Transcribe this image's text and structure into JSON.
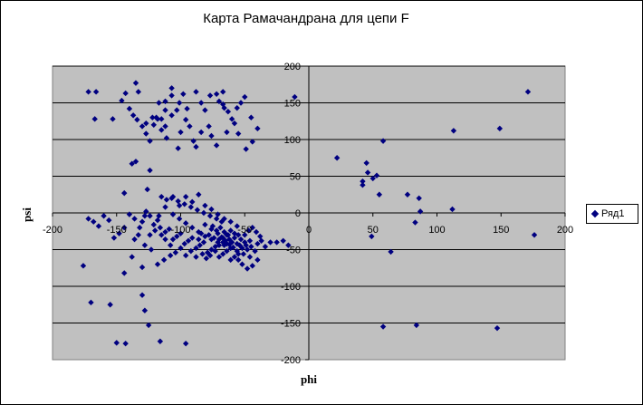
{
  "chart_data": {
    "type": "scatter",
    "title": "Карта Рамачандрана для цепи F",
    "xlabel": "phi",
    "ylabel": "psi",
    "xlim": [
      -200,
      200
    ],
    "ylim": [
      -200,
      200
    ],
    "x_ticks": [
      -200,
      -150,
      -100,
      -50,
      0,
      50,
      100,
      150,
      200
    ],
    "y_ticks": [
      200,
      150,
      100,
      50,
      0,
      -50,
      -100,
      -150,
      -200
    ],
    "grid": "horizontal",
    "legend": "right",
    "colors": {
      "marker": "#000080",
      "plot_bg": "#c0c0c0",
      "gridline": "#000000"
    },
    "series": [
      {
        "name": "Ряд1",
        "points": [
          [
            -172,
            165
          ],
          [
            -166,
            165
          ],
          [
            -167,
            128
          ],
          [
            -153,
            128
          ],
          [
            -146,
            153
          ],
          [
            -143,
            163
          ],
          [
            -135,
            177
          ],
          [
            -133,
            165
          ],
          [
            -140,
            142
          ],
          [
            -137,
            133
          ],
          [
            -134,
            127
          ],
          [
            -130,
            118
          ],
          [
            -127,
            108
          ],
          [
            -124,
            98
          ],
          [
            -119,
            130
          ],
          [
            -115,
            128
          ],
          [
            -112,
            140
          ],
          [
            -112,
            152
          ],
          [
            -107,
            170
          ],
          [
            -107,
            160
          ],
          [
            -112,
            118
          ],
          [
            -111,
            102
          ],
          [
            -103,
            140
          ],
          [
            -98,
            162
          ],
          [
            -96,
            127
          ],
          [
            -93,
            118
          ],
          [
            -90,
            98
          ],
          [
            -88,
            90
          ],
          [
            -84,
            150
          ],
          [
            -81,
            140
          ],
          [
            -78,
            118
          ],
          [
            -76,
            105
          ],
          [
            -72,
            162
          ],
          [
            -70,
            152
          ],
          [
            -66,
            143
          ],
          [
            -63,
            138
          ],
          [
            -60,
            128
          ],
          [
            -58,
            122
          ],
          [
            -67,
            165
          ],
          [
            -77,
            160
          ],
          [
            -88,
            165
          ],
          [
            -95,
            142
          ],
          [
            -101,
            150
          ],
          [
            -117,
            150
          ],
          [
            -121,
            120
          ],
          [
            -107,
            133
          ],
          [
            -100,
            110
          ],
          [
            -102,
            88
          ],
          [
            -84,
            110
          ],
          [
            -72,
            92
          ],
          [
            -64,
            110
          ],
          [
            -67,
            148
          ],
          [
            -50,
            158
          ],
          [
            -53,
            150
          ],
          [
            -55,
            108
          ],
          [
            -56,
            143
          ],
          [
            -45,
            130
          ],
          [
            -44,
            97
          ],
          [
            -40,
            115
          ],
          [
            -49,
            87
          ],
          [
            -122,
            130
          ],
          [
            -127,
            122
          ],
          [
            -118,
            128
          ],
          [
            -115,
            113
          ],
          [
            -135,
            70
          ],
          [
            -138,
            67
          ],
          [
            -124,
            58
          ],
          [
            -144,
            27
          ],
          [
            -126,
            32
          ],
          [
            -115,
            22
          ],
          [
            -111,
            18
          ],
          [
            -106,
            22
          ],
          [
            -101,
            10
          ],
          [
            -96,
            22
          ],
          [
            -91,
            15
          ],
          [
            -86,
            25
          ],
          [
            -81,
            10
          ],
          [
            -76,
            5
          ],
          [
            -71,
            -2
          ],
          [
            -66,
            -8
          ],
          [
            -61,
            -12
          ],
          [
            -56,
            -18
          ],
          [
            -106,
            -2
          ],
          [
            -101,
            -8
          ],
          [
            -96,
            -14
          ],
          [
            -91,
            -20
          ],
          [
            -86,
            -26
          ],
          [
            -81,
            -32
          ],
          [
            -76,
            -36
          ],
          [
            -71,
            -40
          ],
          [
            -66,
            -44
          ],
          [
            -61,
            -48
          ],
          [
            -56,
            -52
          ],
          [
            -51,
            -56
          ],
          [
            -46,
            -60
          ],
          [
            -81,
            -16
          ],
          [
            -76,
            -22
          ],
          [
            -71,
            -28
          ],
          [
            -68,
            -33
          ],
          [
            -65,
            -38
          ],
          [
            -62,
            -43
          ],
          [
            -59,
            -47
          ],
          [
            -56,
            -42
          ],
          [
            -53,
            -36
          ],
          [
            -50,
            -30
          ],
          [
            -47,
            -24
          ],
          [
            -44,
            -20
          ],
          [
            -41,
            -26
          ],
          [
            -38,
            -32
          ],
          [
            -46,
            -38
          ],
          [
            -49,
            -44
          ],
          [
            -52,
            -48
          ],
          [
            -55,
            -56
          ],
          [
            -58,
            -60
          ],
          [
            -61,
            -64
          ],
          [
            -64,
            -52
          ],
          [
            -67,
            -56
          ],
          [
            -70,
            -60
          ],
          [
            -73,
            -46
          ],
          [
            -76,
            -50
          ],
          [
            -79,
            -54
          ],
          [
            -82,
            -40
          ],
          [
            -85,
            -44
          ],
          [
            -88,
            -48
          ],
          [
            -91,
            -34
          ],
          [
            -94,
            -38
          ],
          [
            -97,
            -42
          ],
          [
            -100,
            -28
          ],
          [
            -103,
            -32
          ],
          [
            -106,
            -36
          ],
          [
            -109,
            -22
          ],
          [
            -112,
            -26
          ],
          [
            -115,
            -30
          ],
          [
            -118,
            -10
          ],
          [
            -121,
            -16
          ],
          [
            -124,
            -4
          ],
          [
            -127,
            2
          ],
          [
            -130,
            -12
          ],
          [
            -133,
            -30
          ],
          [
            -136,
            -36
          ],
          [
            -86,
            -36
          ],
          [
            -84,
            -28
          ],
          [
            -78,
            -30
          ],
          [
            -74,
            -34
          ],
          [
            -70,
            -36
          ],
          [
            -67,
            -40
          ],
          [
            -64,
            -42
          ],
          [
            -62,
            -36
          ],
          [
            -60,
            -40
          ],
          [
            -58,
            -34
          ],
          [
            -63,
            -30
          ],
          [
            -66,
            -26
          ],
          [
            -69,
            -20
          ],
          [
            -72,
            -24
          ],
          [
            -75,
            -18
          ],
          [
            -54,
            -44
          ],
          [
            -50,
            -40
          ],
          [
            -48,
            -50
          ],
          [
            -45,
            -46
          ],
          [
            -42,
            -52
          ],
          [
            -40,
            -42
          ],
          [
            -37,
            -38
          ],
          [
            -34,
            -46
          ],
          [
            -30,
            -40
          ],
          [
            -55,
            -64
          ],
          [
            -52,
            -70
          ],
          [
            -48,
            -76
          ],
          [
            -44,
            -72
          ],
          [
            -40,
            -64
          ],
          [
            -25,
            -40
          ],
          [
            -20,
            -38
          ],
          [
            -16,
            -44
          ],
          [
            -55,
            -30
          ],
          [
            -58,
            -28
          ],
          [
            -61,
            -24
          ],
          [
            -64,
            -30
          ],
          [
            -67,
            -34
          ],
          [
            -70,
            -44
          ],
          [
            -73,
            -52
          ],
          [
            -77,
            -58
          ],
          [
            -80,
            -62
          ],
          [
            -83,
            -56
          ],
          [
            -88,
            -60
          ],
          [
            -92,
            -52
          ],
          [
            -96,
            -58
          ],
          [
            -100,
            -48
          ],
          [
            -104,
            -54
          ],
          [
            -108,
            -44
          ],
          [
            -112,
            -36
          ],
          [
            -116,
            -20
          ],
          [
            -120,
            -24
          ],
          [
            -124,
            -30
          ],
          [
            -128,
            -4
          ],
          [
            -132,
            -20
          ],
          [
            -136,
            -8
          ],
          [
            -140,
            -2
          ],
          [
            -144,
            -20
          ],
          [
            -148,
            -28
          ],
          [
            -152,
            -34
          ],
          [
            -156,
            -10
          ],
          [
            -160,
            -4
          ],
          [
            -164,
            -18
          ],
          [
            -168,
            -12
          ],
          [
            -172,
            -8
          ],
          [
            -68,
            -12
          ],
          [
            -72,
            -8
          ],
          [
            -77,
            -4
          ],
          [
            -82,
            0
          ],
          [
            -87,
            4
          ],
          [
            -92,
            8
          ],
          [
            -97,
            12
          ],
          [
            -102,
            16
          ],
          [
            -107,
            20
          ],
          [
            -112,
            8
          ],
          [
            -117,
            -4
          ],
          [
            -108,
            -58
          ],
          [
            -113,
            -64
          ],
          [
            -118,
            -70
          ],
          [
            -123,
            -50
          ],
          [
            -128,
            -44
          ],
          [
            -138,
            -60
          ],
          [
            -144,
            -82
          ],
          [
            -130,
            -74
          ],
          [
            -176,
            -72
          ],
          [
            -170,
            -122
          ],
          [
            -155,
            -125
          ],
          [
            -130,
            -112
          ],
          [
            -128,
            -133
          ],
          [
            -125,
            -153
          ],
          [
            -150,
            -177
          ],
          [
            -143,
            -178
          ],
          [
            -116,
            -175
          ],
          [
            -96,
            -178
          ],
          [
            -11,
            158
          ],
          [
            22,
            75
          ],
          [
            42,
            43
          ],
          [
            42,
            38
          ],
          [
            45,
            68
          ],
          [
            46,
            55
          ],
          [
            50,
            47
          ],
          [
            49,
            -32
          ],
          [
            53,
            51
          ],
          [
            55,
            25
          ],
          [
            58,
            98
          ],
          [
            58,
            -155
          ],
          [
            64,
            -53
          ],
          [
            77,
            25
          ],
          [
            83,
            -13
          ],
          [
            84,
            -153
          ],
          [
            86,
            20
          ],
          [
            87,
            2
          ],
          [
            112,
            5
          ],
          [
            113,
            112
          ],
          [
            147,
            -157
          ],
          [
            149,
            115
          ],
          [
            171,
            165
          ],
          [
            176,
            -30
          ]
        ]
      }
    ]
  }
}
